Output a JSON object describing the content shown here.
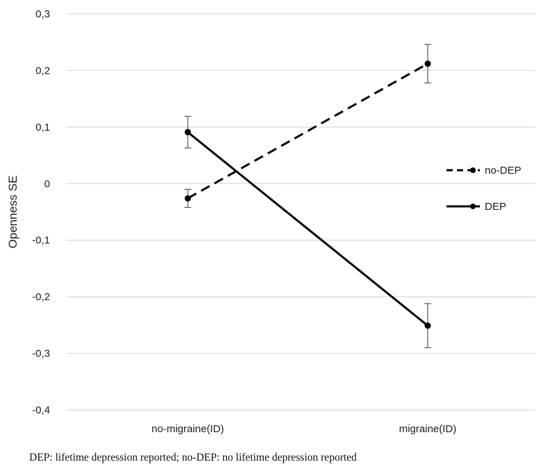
{
  "chart_data": {
    "type": "line",
    "title": "",
    "xlabel": "",
    "ylabel": "Openness SE",
    "categories": [
      "no-migraine(ID)",
      "migraine(ID)"
    ],
    "ylim": [
      -0.4,
      0.3
    ],
    "yticks": [
      0.3,
      0.2,
      0.1,
      0,
      -0.1,
      -0.2,
      -0.3,
      -0.4
    ],
    "ytick_labels": [
      "0,3",
      "0,2",
      "0,1",
      "0",
      "-0,1",
      "-0,2",
      "-0,3",
      "-0,4"
    ],
    "grid": true,
    "legend_position": "right",
    "series": [
      {
        "name": "no-DEP",
        "style": "dashed",
        "color": "#000000",
        "values": [
          -0.026,
          0.212
        ],
        "error": [
          0.016,
          0.034
        ]
      },
      {
        "name": "DEP",
        "style": "solid",
        "color": "#000000",
        "values": [
          0.091,
          -0.251
        ],
        "error": [
          0.028,
          0.039
        ]
      }
    ]
  },
  "caption": "DEP: lifetime depression reported; no-DEP: no lifetime depression reported"
}
